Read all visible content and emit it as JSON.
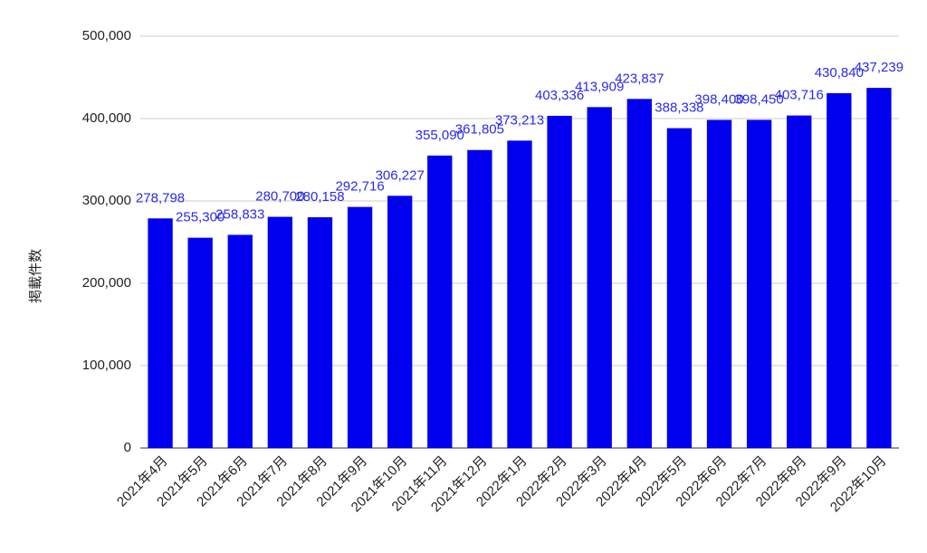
{
  "chart_data": {
    "type": "bar",
    "y_label": "掲載件数",
    "categories": [
      "2021年4月",
      "2021年5月",
      "2021年6月",
      "2021年7月",
      "2021年8月",
      "2021年9月",
      "2021年10月",
      "2021年11月",
      "2021年12月",
      "2022年1月",
      "2022年2月",
      "2022年3月",
      "2022年4月",
      "2022年5月",
      "2022年6月",
      "2022年7月",
      "2022年8月",
      "2022年9月",
      "2022年10月"
    ],
    "values": [
      278798,
      255300,
      258833,
      280700,
      280158,
      292716,
      306227,
      355090,
      361805,
      373213,
      403336,
      413909,
      423837,
      388338,
      398400,
      398450,
      403716,
      430840,
      437239
    ],
    "value_labels": [
      "278,798",
      "255,300",
      "258,833",
      "280,700",
      "280,158",
      "292,716",
      "306,227",
      "355,090",
      "361,805",
      "373,213",
      "403,336",
      "413,909",
      "423,837",
      "388,338",
      "398,400",
      "398,450",
      "403,716",
      "430,840",
      "437,239"
    ],
    "color": "#0000ee",
    "ylim": [
      0,
      500000
    ],
    "yticks": [
      0,
      {
        "value": 100000,
        "label": "100,000"
      },
      {
        "value": 200000,
        "label": "200,000"
      },
      {
        "value": 300000,
        "label": "300,000"
      },
      {
        "value": 400000,
        "label": "400,000"
      },
      {
        "value": 500000,
        "label": "500,000"
      }
    ],
    "grid": true
  }
}
